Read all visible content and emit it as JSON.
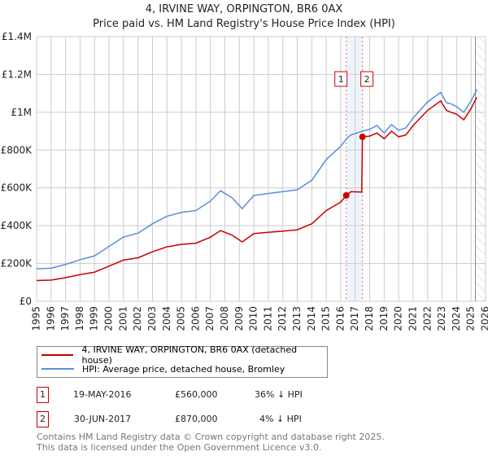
{
  "chart_data": {
    "type": "line",
    "title": "4, IRVINE WAY, ORPINGTON, BR6 0AX",
    "subtitle": "Price paid vs. HM Land Registry's House Price Index (HPI)",
    "xlim": [
      1995,
      2026
    ],
    "ylim": [
      0,
      1400000
    ],
    "x_ticks": [
      "1995",
      "1996",
      "1997",
      "1998",
      "1999",
      "2000",
      "2001",
      "2002",
      "2003",
      "2004",
      "2005",
      "2006",
      "2007",
      "2008",
      "2009",
      "2010",
      "2011",
      "2012",
      "2013",
      "2014",
      "2015",
      "2016",
      "2017",
      "2018",
      "2019",
      "2020",
      "2021",
      "2022",
      "2023",
      "2024",
      "2025",
      "2026"
    ],
    "y_ticks": [
      {
        "v": 0,
        "label": "£0"
      },
      {
        "v": 200000,
        "label": "£200K"
      },
      {
        "v": 400000,
        "label": "£400K"
      },
      {
        "v": 600000,
        "label": "£600K"
      },
      {
        "v": 800000,
        "label": "£800K"
      },
      {
        "v": 1000000,
        "label": "£1M"
      },
      {
        "v": 1200000,
        "label": "£1.2M"
      },
      {
        "v": 1400000,
        "label": "£1.4M"
      }
    ],
    "grid": true,
    "series": [
      {
        "name": "4, IRVINE WAY, ORPINGTON, BR6 0AX (detached house)",
        "color": "#cc0000",
        "x": [
          1995,
          1996,
          1997,
          1998,
          1999,
          2000,
          2001,
          2002,
          2003,
          2004,
          2005,
          2006,
          2007,
          2007.7,
          2008.5,
          2009.2,
          2010,
          2011,
          2012,
          2013,
          2014,
          2015,
          2016,
          2016.38,
          2016.7,
          2017.45,
          2017.5,
          2018,
          2018.5,
          2019,
          2019.5,
          2020,
          2020.5,
          2021,
          2022,
          2022.9,
          2023.3,
          2023.6,
          2024,
          2024.5,
          2025,
          2025.4
        ],
        "y": [
          110000,
          112000,
          125000,
          141000,
          154000,
          186000,
          218000,
          230000,
          262000,
          288000,
          301000,
          307000,
          339000,
          374000,
          350000,
          314000,
          358000,
          365000,
          371000,
          378000,
          410000,
          480000,
          525000,
          560000,
          580000,
          578000,
          870000,
          874000,
          890000,
          860000,
          900000,
          870000,
          880000,
          930000,
          1010000,
          1060000,
          1010000,
          1000000,
          990000,
          960000,
          1020000,
          1080000
        ]
      },
      {
        "name": "HPI: Average price, detached house, Bromley",
        "color": "#5b8fd4",
        "x": [
          1995,
          1996,
          1997,
          1998,
          1999,
          2000,
          2001,
          2002,
          2003,
          2004,
          2005,
          2006,
          2007,
          2007.7,
          2008.5,
          2009.2,
          2010,
          2011,
          2012,
          2013,
          2014,
          2015,
          2016,
          2016.4,
          2016.7,
          2017.5,
          2018,
          2018.5,
          2019,
          2019.5,
          2020,
          2020.5,
          2021,
          2022,
          2022.9,
          2023.3,
          2023.6,
          2024,
          2024.5,
          2025,
          2025.4
        ],
        "y": [
          172000,
          175000,
          195000,
          220000,
          240000,
          290000,
          340000,
          360000,
          410000,
          450000,
          470000,
          480000,
          530000,
          585000,
          547000,
          490000,
          560000,
          570000,
          580000,
          590000,
          640000,
          750000,
          820000,
          860000,
          880000,
          900000,
          910000,
          930000,
          890000,
          935000,
          905000,
          917000,
          970000,
          1055000,
          1105000,
          1050000,
          1045000,
          1030000,
          1000000,
          1060000,
          1120000
        ]
      }
    ],
    "sales": [
      {
        "id": "1",
        "x": 2016.38,
        "date": "19-MAY-2016",
        "price": 560000,
        "price_label": "£560,000",
        "hpi_label": "36% ↓ HPI"
      },
      {
        "id": "2",
        "x": 2017.5,
        "date": "30-JUN-2017",
        "price": 870000,
        "price_label": "£870,000",
        "hpi_label": "4% ↓ HPI"
      }
    ],
    "data_end": 2025.3
  },
  "footer": [
    "Contains HM Land Registry data © Crown copyright and database right 2025.",
    "This data is licensed under the Open Government Licence v3.0."
  ]
}
